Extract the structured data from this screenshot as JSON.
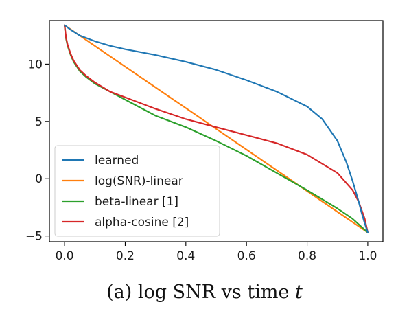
{
  "caption": {
    "prefix": "(a) log SNR vs time ",
    "var": "t"
  },
  "chart_data": {
    "type": "line",
    "title": "",
    "xlabel": "",
    "ylabel": "",
    "xlim": [
      -0.05,
      1.05
    ],
    "ylim": [
      -5.5,
      13.8
    ],
    "xticks": [
      0.0,
      0.2,
      0.4,
      0.6,
      0.8,
      1.0
    ],
    "xtick_labels": [
      "0.0",
      "0.2",
      "0.4",
      "0.6",
      "0.8",
      "1.0"
    ],
    "yticks": [
      -5,
      0,
      5,
      10
    ],
    "ytick_labels": [
      "−5",
      "0",
      "5",
      "10"
    ],
    "legend_position": "lower-left",
    "grid": false,
    "series": [
      {
        "name": "learned",
        "color": "#1f77b4",
        "x": [
          0.0,
          0.02,
          0.05,
          0.1,
          0.15,
          0.2,
          0.3,
          0.4,
          0.5,
          0.6,
          0.7,
          0.8,
          0.85,
          0.9,
          0.93,
          0.95,
          0.97,
          0.98,
          0.99,
          1.0
        ],
        "y": [
          13.4,
          13.0,
          12.5,
          12.0,
          11.6,
          11.3,
          10.8,
          10.2,
          9.5,
          8.6,
          7.6,
          6.3,
          5.2,
          3.3,
          1.4,
          -0.2,
          -2.0,
          -3.0,
          -3.9,
          -4.7
        ]
      },
      {
        "name": "log(SNR)-linear",
        "color": "#ff7f0e",
        "x": [
          0.0,
          1.0
        ],
        "y": [
          13.4,
          -4.7
        ]
      },
      {
        "name": "beta-linear [1]",
        "color": "#2ca02c",
        "x": [
          0.0,
          0.005,
          0.01,
          0.02,
          0.03,
          0.05,
          0.07,
          0.1,
          0.15,
          0.2,
          0.3,
          0.4,
          0.5,
          0.6,
          0.7,
          0.8,
          0.9,
          0.95,
          1.0
        ],
        "y": [
          13.4,
          12.2,
          11.6,
          10.8,
          10.2,
          9.4,
          8.9,
          8.3,
          7.6,
          6.9,
          5.5,
          4.5,
          3.3,
          2.0,
          0.5,
          -1.0,
          -2.6,
          -3.5,
          -4.7
        ]
      },
      {
        "name": "alpha-cosine [2]",
        "color": "#d62728",
        "x": [
          0.0,
          0.005,
          0.01,
          0.02,
          0.03,
          0.05,
          0.07,
          0.1,
          0.15,
          0.2,
          0.3,
          0.4,
          0.5,
          0.6,
          0.7,
          0.8,
          0.9,
          0.95,
          0.97,
          0.99,
          1.0
        ],
        "y": [
          13.4,
          12.3,
          11.7,
          10.9,
          10.3,
          9.5,
          9.0,
          8.4,
          7.6,
          7.1,
          6.1,
          5.2,
          4.5,
          3.8,
          3.1,
          2.1,
          0.5,
          -1.0,
          -2.0,
          -3.5,
          -4.7
        ]
      }
    ]
  }
}
